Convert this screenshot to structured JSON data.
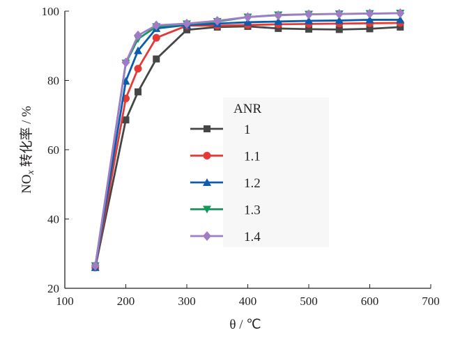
{
  "chart_data": {
    "type": "line",
    "xlabel": "θ / ℃",
    "ylabel_main": "NO",
    "ylabel_sub": "x",
    "ylabel_rest": " 转化率 / %",
    "xlim": [
      100,
      700
    ],
    "ylim": [
      20,
      100
    ],
    "xticks": [
      100,
      200,
      300,
      400,
      500,
      600,
      700
    ],
    "yticks": [
      20,
      40,
      60,
      80,
      100
    ],
    "grid": false,
    "legend_title": "ANR",
    "legend_placement": "center",
    "x": [
      150,
      200,
      220,
      250,
      300,
      350,
      400,
      450,
      500,
      550,
      600,
      650
    ],
    "series": [
      {
        "name": "1",
        "color": "#464646",
        "marker": "square",
        "values": [
          26,
          68.6,
          76.7,
          86.2,
          94.6,
          95.4,
          95.6,
          95.0,
          94.8,
          94.7,
          94.9,
          95.4
        ]
      },
      {
        "name": "1.1",
        "color": "#e53935",
        "marker": "circle",
        "values": [
          26,
          74.8,
          83.4,
          92.3,
          95.8,
          95.8,
          96.0,
          96.2,
          96.3,
          96.4,
          96.5,
          96.6
        ]
      },
      {
        "name": "1.2",
        "color": "#0b5cad",
        "marker": "triangle-up",
        "values": [
          26,
          79.8,
          88.6,
          95.0,
          96.0,
          96.4,
          96.8,
          97.0,
          97.2,
          97.3,
          97.5,
          97.5
        ]
      },
      {
        "name": "1.3",
        "color": "#139a5a",
        "marker": "triangle-down",
        "values": [
          26.5,
          85.0,
          92.0,
          95.5,
          96.3,
          97.0,
          98.3,
          98.9,
          99.1,
          99.2,
          99.3,
          99.4
        ]
      },
      {
        "name": "1.4",
        "color": "#a07cc5",
        "marker": "diamond",
        "values": [
          26.5,
          85.2,
          93.0,
          95.9,
          96.4,
          97.2,
          98.3,
          98.8,
          99.1,
          99.2,
          99.3,
          99.4
        ]
      }
    ]
  }
}
